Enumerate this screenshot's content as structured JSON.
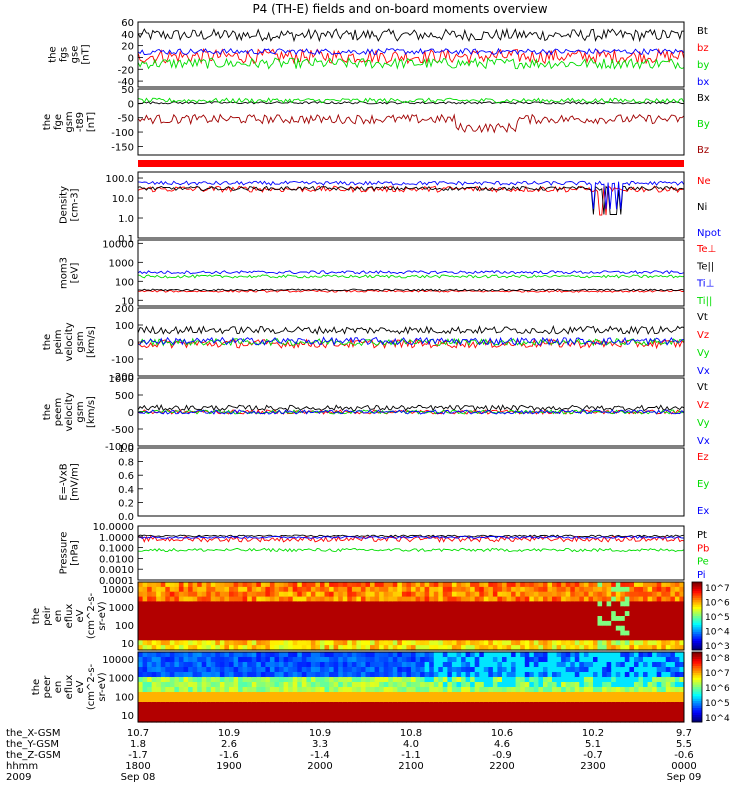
{
  "title": "P4 (TH-E) fields and on-board moments overview",
  "colors": {
    "black": "#000000",
    "red": "#ff0000",
    "green": "#00dd00",
    "blue": "#0000ff",
    "darkred": "#a00000"
  },
  "chart_data": [
    {
      "id": "fgs",
      "type": "line",
      "ylabel": [
        "the",
        "fgs",
        "gse",
        "[nT]"
      ],
      "ylim": [
        -50,
        60
      ],
      "yticks": [
        60,
        40,
        20,
        0,
        -20,
        -40
      ],
      "series": [
        {
          "name": "Bt",
          "color": "black",
          "base": 38,
          "noise": 10
        },
        {
          "name": "bz",
          "color": "red",
          "base": 2,
          "noise": 12
        },
        {
          "name": "by",
          "color": "green",
          "base": -10,
          "noise": 9
        },
        {
          "name": "bx",
          "color": "blue",
          "base": 10,
          "noise": 5
        }
      ]
    },
    {
      "id": "fge",
      "type": "line",
      "ylabel": [
        "the",
        "fge",
        "gsm",
        "-t89",
        "[nT]"
      ],
      "ylim": [
        -180,
        50
      ],
      "yticks": [
        50,
        0,
        -50,
        -100,
        -150
      ],
      "series": [
        {
          "name": "Bx",
          "color": "black",
          "base": 2,
          "noise": 4
        },
        {
          "name": "By",
          "color": "green",
          "base": 10,
          "noise": 8
        },
        {
          "name": "Bz",
          "color": "darkred",
          "base": -55,
          "noise": 16
        }
      ]
    },
    {
      "id": "density",
      "type": "line",
      "log": true,
      "ylabel": [
        "Density",
        "[cm-3]"
      ],
      "ylim": [
        0.1,
        200
      ],
      "yticks": [
        "100.0",
        "10.0",
        "1.0",
        "0.1"
      ],
      "ytick_vals": [
        100,
        10,
        1,
        0.1
      ],
      "series": [
        {
          "name": "Ne",
          "color": "red",
          "base": 28,
          "noise": 0.15
        },
        {
          "name": "Ni",
          "color": "black",
          "base": 30,
          "noise": 0.1
        },
        {
          "name": "Npot",
          "color": "blue",
          "base": 55,
          "noise": 0.1
        }
      ]
    },
    {
      "id": "temp",
      "type": "line",
      "log": true,
      "ylabel": [
        "mom3",
        "[eV]"
      ],
      "ylim": [
        5,
        15000
      ],
      "yticks": [
        "10000",
        "1000",
        "100",
        "10"
      ],
      "ytick_vals": [
        10000,
        1000,
        100,
        10
      ],
      "series": [
        {
          "name": "Te⊥",
          "color": "red",
          "base": 30,
          "noise": 0.05
        },
        {
          "name": "Te||",
          "color": "black",
          "base": 35,
          "noise": 0.05
        },
        {
          "name": "Ti⊥",
          "color": "blue",
          "base": 300,
          "noise": 0.08
        },
        {
          "name": "Ti||",
          "color": "green",
          "base": 180,
          "noise": 0.08
        }
      ]
    },
    {
      "id": "peim",
      "type": "line",
      "ylabel": [
        "the",
        "peim",
        "velocity",
        "gsm",
        "[km/s]"
      ],
      "ylim": [
        -200,
        200
      ],
      "yticks": [
        200,
        100,
        0,
        -100,
        -200
      ],
      "series": [
        {
          "name": "Vt",
          "color": "black",
          "base": 70,
          "noise": 22
        },
        {
          "name": "Vz",
          "color": "red",
          "base": -10,
          "noise": 25
        },
        {
          "name": "Vy",
          "color": "green",
          "base": 0,
          "noise": 20
        },
        {
          "name": "Vx",
          "color": "blue",
          "base": 5,
          "noise": 22
        }
      ]
    },
    {
      "id": "peem",
      "type": "line",
      "ylabel": [
        "the",
        "peem",
        "velocity",
        "gsm",
        "[km/s]"
      ],
      "ylim": [
        -1000,
        1000
      ],
      "yticks": [
        1000,
        500,
        0,
        -500,
        -1000
      ],
      "series": [
        {
          "name": "Vt",
          "color": "black",
          "base": 120,
          "noise": 80
        },
        {
          "name": "Vz",
          "color": "red",
          "base": 0,
          "noise": 60
        },
        {
          "name": "Vy",
          "color": "green",
          "base": 0,
          "noise": 55
        },
        {
          "name": "Vx",
          "color": "blue",
          "base": 0,
          "noise": 60
        }
      ]
    },
    {
      "id": "efield",
      "type": "line",
      "ylabel": [
        "E=-VxB",
        "[mV/m]"
      ],
      "ylim": [
        0,
        1
      ],
      "yticks": [
        "1.0",
        "0.8",
        "0.6",
        "0.4",
        "0.2",
        "0.0"
      ],
      "ytick_vals": [
        1,
        0.8,
        0.6,
        0.4,
        0.2,
        0
      ],
      "series": [
        {
          "name": "Ez",
          "color": "red"
        },
        {
          "name": "Ey",
          "color": "green"
        },
        {
          "name": "Ex",
          "color": "blue"
        }
      ]
    },
    {
      "id": "pressure",
      "type": "line",
      "log": true,
      "ylabel": [
        "Pressure",
        "[nPa]"
      ],
      "ylim": [
        0.0001,
        10
      ],
      "yticks": [
        "10.0000",
        "1.0000",
        "0.1000",
        "0.0100",
        "0.0010",
        "0.0001"
      ],
      "ytick_vals": [
        10,
        1,
        0.1,
        0.01,
        0.001,
        0.0001
      ],
      "series": [
        {
          "name": "Pt",
          "color": "black",
          "base": 1.2,
          "noise": 0.08
        },
        {
          "name": "Pb",
          "color": "red",
          "base": 0.6,
          "noise": 0.25
        },
        {
          "name": "Pe",
          "color": "green",
          "base": 0.06,
          "noise": 0.15
        },
        {
          "name": "Pi",
          "color": "blue",
          "base": 0.9,
          "noise": 0.1
        }
      ]
    },
    {
      "id": "peir",
      "type": "heatmap",
      "ylabel": [
        "the",
        "peir",
        "en",
        "eflux",
        "eV",
        "(cm^2-s-",
        "sr-eV)"
      ],
      "yticks": [
        "10000",
        "1000",
        "100",
        "10"
      ],
      "colorbar": {
        "labels": [
          "10^7",
          "10^6",
          "10^5",
          "10^4",
          "10^3"
        ],
        "range": [
          3,
          7
        ]
      }
    },
    {
      "id": "peer",
      "type": "heatmap",
      "ylabel": [
        "the",
        "peer",
        "en",
        "eflux",
        "eV",
        "(cm^2-s-",
        "sr-eV)"
      ],
      "yticks": [
        "10000",
        "1000",
        "100",
        "10"
      ],
      "colorbar": {
        "labels": [
          "10^8",
          "10^7",
          "10^6",
          "10^5",
          "10^4"
        ],
        "range": [
          4,
          8
        ]
      }
    }
  ],
  "xaxis": {
    "row_labels": [
      "the_X-GSM",
      "the_Y-GSM",
      "the_Z-GSM",
      "hhmm",
      "2009"
    ],
    "ticks": [
      {
        "values": [
          "10.7",
          "1.8",
          "-1.7",
          "1800",
          "Sep 08"
        ]
      },
      {
        "values": [
          "10.9",
          "2.6",
          "-1.6",
          "1900",
          ""
        ]
      },
      {
        "values": [
          "10.9",
          "3.3",
          "-1.4",
          "2000",
          ""
        ]
      },
      {
        "values": [
          "10.8",
          "4.0",
          "-1.1",
          "2100",
          ""
        ]
      },
      {
        "values": [
          "10.6",
          "4.6",
          "-0.9",
          "2200",
          ""
        ]
      },
      {
        "values": [
          "10.2",
          "5.1",
          "-0.7",
          "2300",
          ""
        ]
      },
      {
        "values": [
          "9.7",
          "5.5",
          "-0.6",
          "0000",
          "Sep 09"
        ]
      }
    ]
  }
}
